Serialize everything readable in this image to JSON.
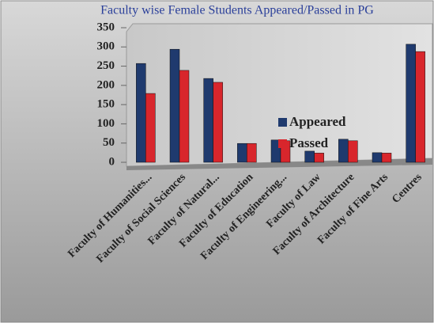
{
  "chart_data": {
    "type": "bar",
    "title": "Faculty wise Female Students Appeared/Passed in PG",
    "categories": [
      "Faculty of Humanities...",
      "Faculty of Social Sciences",
      "Faculty of Natural...",
      "Faculty of Education",
      "Faculty of Engineering...",
      "Faculty of Law",
      "Faculty of Architecture",
      "Faculty of Fine Arts",
      "Centres"
    ],
    "series": [
      {
        "name": "Appeared",
        "color": "#1f3a6e",
        "values": [
          257,
          294,
          218,
          49,
          58,
          29,
          60,
          25,
          307
        ]
      },
      {
        "name": "Passed",
        "color": "#d8262c",
        "values": [
          179,
          239,
          208,
          49,
          56,
          24,
          56,
          24,
          288
        ]
      }
    ],
    "ylim": [
      0,
      350
    ],
    "yticks": [
      0,
      50,
      100,
      150,
      200,
      250,
      300,
      350
    ],
    "legend": "right"
  }
}
